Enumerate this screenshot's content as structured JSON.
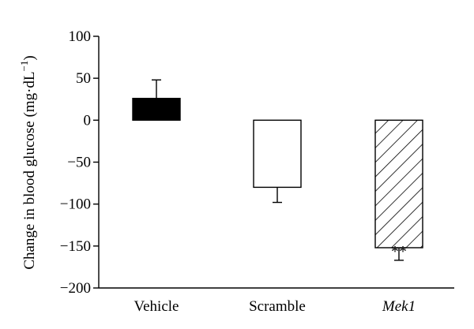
{
  "chart_data": {
    "type": "bar",
    "categories": [
      "Vehicle",
      "Scramble",
      "Mek1"
    ],
    "category_styles": [
      "normal",
      "normal",
      "italic"
    ],
    "values": [
      26,
      -80,
      -152
    ],
    "errors": [
      22,
      18,
      15
    ],
    "bar_fills": [
      "solid-black",
      "white",
      "diagonal-hatch"
    ],
    "annotations": [
      "",
      "",
      "**"
    ],
    "ylabel_main": "Change in blood glucose (mg·dL",
    "ylabel_sup": "−1",
    "ylabel_close": ")",
    "ylim": [
      -200,
      100
    ],
    "yticks": [
      100,
      50,
      0,
      -50,
      -100,
      -150,
      -200
    ],
    "ytick_labels": [
      "100",
      "50",
      "0",
      "−50",
      "−100",
      "−150",
      "−200"
    ],
    "grid": false,
    "colors": {
      "bar_stroke": "#000000",
      "solid": "#000000",
      "open": "#ffffff"
    }
  }
}
